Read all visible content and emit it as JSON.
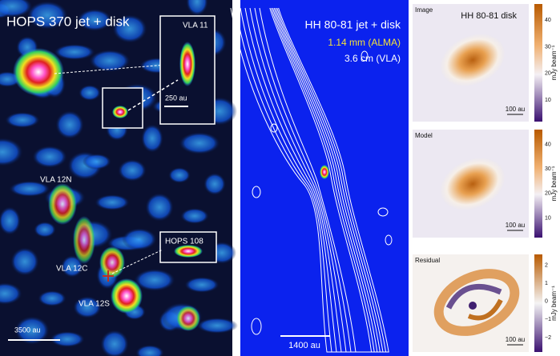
{
  "left": {
    "title": "HOPS 370 jet + disk",
    "labels": [
      "VLA 11",
      "250 au",
      "VLA 12N",
      "HOPS 108",
      "VLA 12C",
      "VLA 12S",
      "3500 au"
    ]
  },
  "middle": {
    "title": "HH 80-81 jet + disk",
    "band_alma": "1.14 mm (ALMA)",
    "band_vla": "3.6 cm (VLA)",
    "scale": "1400 au"
  },
  "right": {
    "title": "HH 80-81 disk",
    "unit": "mJy beam⁻¹",
    "panels": [
      {
        "label": "Image",
        "scale": "100 au",
        "ticks": [
          "40",
          "30",
          "20",
          "10"
        ]
      },
      {
        "label": "Model",
        "scale": "100 au",
        "ticks": [
          "40",
          "30",
          "20",
          "10"
        ]
      },
      {
        "label": "Residual",
        "scale": "100 au",
        "ticks": [
          "2",
          "1",
          "0",
          "−1",
          "−2"
        ]
      }
    ]
  }
}
